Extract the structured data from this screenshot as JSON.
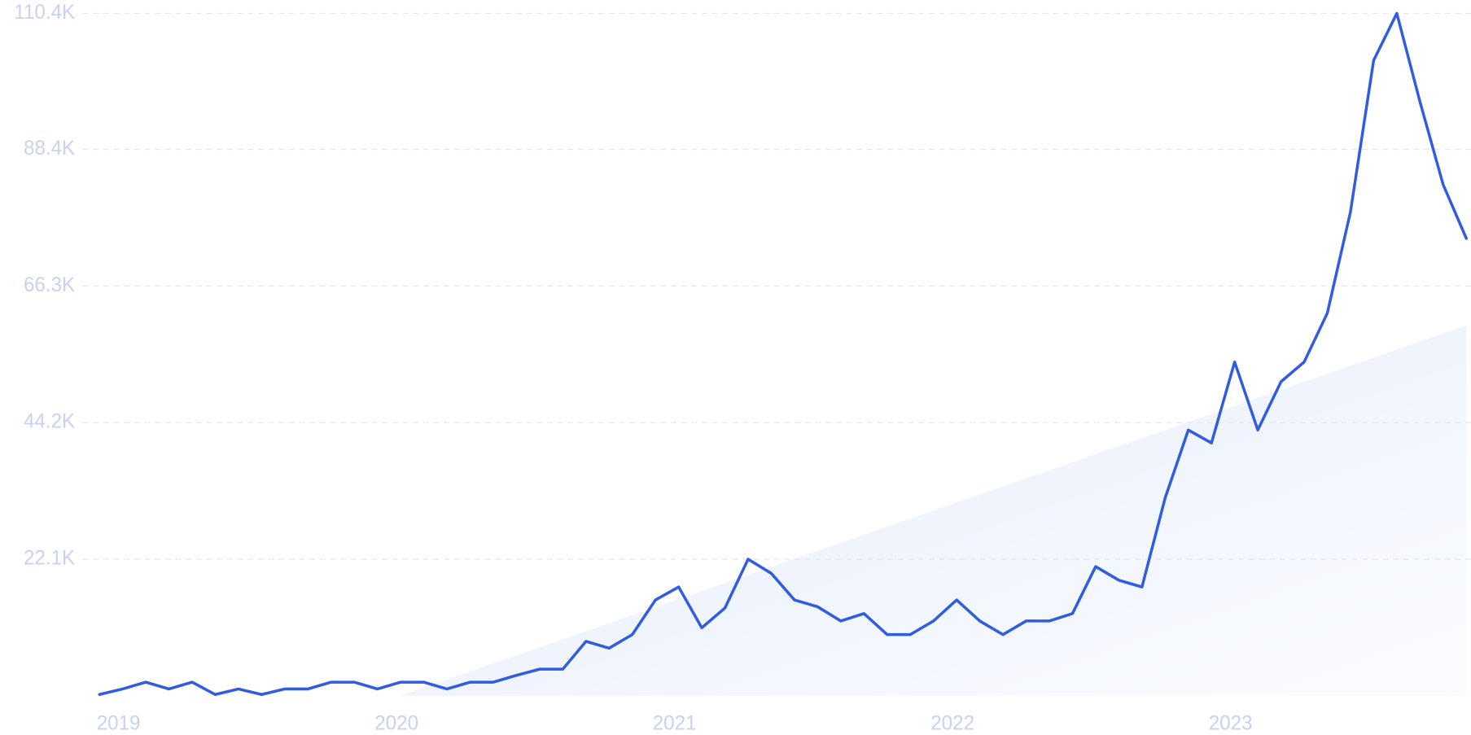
{
  "chart_data": {
    "type": "line",
    "categories": [
      "2019",
      null,
      null,
      null,
      null,
      null,
      null,
      null,
      null,
      null,
      null,
      null,
      "2020",
      null,
      null,
      null,
      null,
      null,
      null,
      null,
      null,
      null,
      null,
      null,
      "2021",
      null,
      null,
      null,
      null,
      null,
      null,
      null,
      null,
      null,
      null,
      null,
      "2022",
      null,
      null,
      null,
      null,
      null,
      null,
      null,
      null,
      null,
      null,
      null,
      "2023",
      null,
      null,
      null,
      null,
      null,
      null,
      null,
      null,
      null,
      null,
      null
    ],
    "series": [
      {
        "color": "#2f5ce0",
        "values": [
          0.2,
          1.1,
          2.2,
          1.1,
          2.2,
          0.2,
          1.1,
          0.2,
          1.1,
          1.1,
          2.2,
          2.2,
          1.1,
          2.2,
          2.2,
          1.1,
          2.2,
          2.2,
          3.3,
          4.3,
          4.3,
          8.8,
          7.7,
          9.9,
          15.5,
          17.6,
          11.0,
          14.2,
          22.1,
          19.8,
          15.5,
          14.4,
          12.1,
          13.3,
          9.9,
          9.9,
          12.1,
          15.5,
          12.1,
          9.9,
          12.1,
          12.1,
          13.3,
          20.9,
          18.7,
          17.6,
          32.0,
          43.0,
          40.9,
          54.0,
          43.0,
          50.8,
          54.0,
          61.9,
          78.3,
          102.8,
          110.4,
          96.1,
          82.7,
          74.0
        ]
      }
    ],
    "trend": {
      "values": [
        0,
        59.9
      ]
    },
    "ylim": [
      0,
      110.4
    ],
    "yticks": [
      {
        "value": 22.1,
        "label": "22.1K"
      },
      {
        "value": 44.2,
        "label": "44.2K"
      },
      {
        "value": 66.3,
        "label": "66.3K"
      },
      {
        "value": 88.4,
        "label": "88.4K"
      },
      {
        "value": 110.4,
        "label": "110.4K"
      }
    ],
    "grid": true
  }
}
